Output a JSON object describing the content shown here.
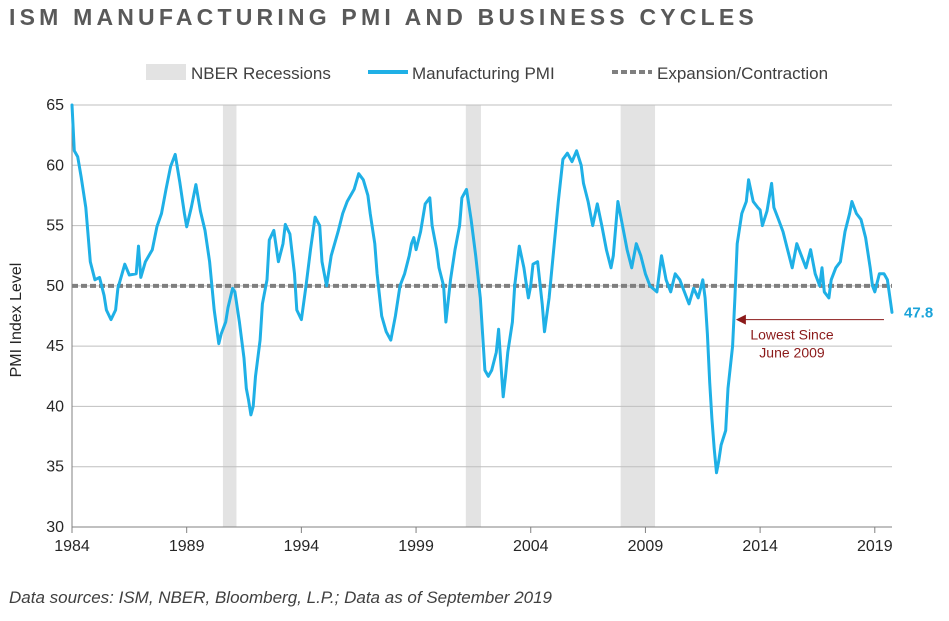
{
  "title": "ISM MANUFACTURING PMI AND BUSINESS CYCLES",
  "source_note": "Data sources: ISM, NBER, Bloomberg, L.P.; Data as of September 2019",
  "colors": {
    "pmi": "#1fb0e6",
    "recession": "#e3e3e3",
    "threshold": "#7f7f7f",
    "annotation": "#8b1a1a",
    "end_label": "#1aa3d9"
  },
  "chart_data": {
    "type": "line",
    "title": "ISM MANUFACTURING PMI AND BUSINESS CYCLES",
    "xlabel": "",
    "ylabel": "PMI Index Level",
    "xlim": [
      1984.0,
      2019.75
    ],
    "ylim": [
      30,
      65
    ],
    "x_ticks": [
      "1984",
      "1989",
      "1994",
      "1999",
      "2004",
      "2009",
      "2014",
      "2019"
    ],
    "y_ticks": [
      "30",
      "35",
      "40",
      "45",
      "50",
      "55",
      "60",
      "65"
    ],
    "grid": "horizontal",
    "legend": {
      "position": "top",
      "entries": [
        "NBER Recessions",
        "Manufacturing PMI",
        "Expansion/Contraction"
      ]
    },
    "threshold": {
      "name": "Expansion/Contraction",
      "value": 50
    },
    "recessions": [
      {
        "start": 1990.58,
        "end": 1991.17
      },
      {
        "start": 2001.17,
        "end": 2001.83
      },
      {
        "start": 2007.92,
        "end": 2009.42
      }
    ],
    "series": [
      {
        "name": "Manufacturing PMI",
        "points": [
          [
            1984.0,
            65.0
          ],
          [
            1984.1,
            61.2
          ],
          [
            1984.25,
            60.7
          ],
          [
            1984.4,
            59.0
          ],
          [
            1984.6,
            56.5
          ],
          [
            1984.8,
            52.0
          ],
          [
            1985.0,
            50.5
          ],
          [
            1985.2,
            50.7
          ],
          [
            1985.4,
            49.2
          ],
          [
            1985.5,
            48.0
          ],
          [
            1985.7,
            47.2
          ],
          [
            1985.9,
            48.0
          ],
          [
            1986.0,
            49.8
          ],
          [
            1986.3,
            51.8
          ],
          [
            1986.5,
            50.9
          ],
          [
            1986.8,
            51.0
          ],
          [
            1986.9,
            53.3
          ],
          [
            1987.0,
            50.7
          ],
          [
            1987.2,
            52.0
          ],
          [
            1987.5,
            53.0
          ],
          [
            1987.7,
            54.9
          ],
          [
            1987.9,
            56.0
          ],
          [
            1988.1,
            58.0
          ],
          [
            1988.3,
            59.9
          ],
          [
            1988.5,
            60.9
          ],
          [
            1988.7,
            58.6
          ],
          [
            1988.9,
            56.0
          ],
          [
            1989.0,
            54.9
          ],
          [
            1989.2,
            56.5
          ],
          [
            1989.4,
            58.4
          ],
          [
            1989.6,
            56.2
          ],
          [
            1989.8,
            54.6
          ],
          [
            1990.0,
            52.0
          ],
          [
            1990.2,
            48.0
          ],
          [
            1990.4,
            45.2
          ],
          [
            1990.5,
            46.0
          ],
          [
            1990.7,
            47.0
          ],
          [
            1990.8,
            48.2
          ],
          [
            1991.0,
            49.8
          ],
          [
            1991.1,
            49.5
          ],
          [
            1991.3,
            47.0
          ],
          [
            1991.5,
            44.0
          ],
          [
            1991.6,
            41.5
          ],
          [
            1991.7,
            40.5
          ],
          [
            1991.8,
            39.3
          ],
          [
            1991.9,
            40.0
          ],
          [
            1992.0,
            42.5
          ],
          [
            1992.2,
            45.5
          ],
          [
            1992.3,
            48.5
          ],
          [
            1992.5,
            50.5
          ],
          [
            1992.6,
            53.8
          ],
          [
            1992.8,
            54.6
          ],
          [
            1993.0,
            52.0
          ],
          [
            1993.2,
            53.5
          ],
          [
            1993.3,
            55.1
          ],
          [
            1993.5,
            54.3
          ],
          [
            1993.7,
            51.0
          ],
          [
            1993.8,
            48.0
          ],
          [
            1994.0,
            47.2
          ],
          [
            1994.2,
            50.0
          ],
          [
            1994.4,
            53.0
          ],
          [
            1994.6,
            55.7
          ],
          [
            1994.8,
            55.0
          ],
          [
            1994.9,
            52.0
          ],
          [
            1995.1,
            50.0
          ],
          [
            1995.3,
            52.5
          ],
          [
            1995.6,
            54.5
          ],
          [
            1995.8,
            56.0
          ],
          [
            1996.0,
            57.0
          ],
          [
            1996.3,
            58.0
          ],
          [
            1996.5,
            59.3
          ],
          [
            1996.7,
            58.8
          ],
          [
            1996.9,
            57.5
          ],
          [
            1997.0,
            56.0
          ],
          [
            1997.2,
            53.5
          ],
          [
            1997.3,
            51.0
          ],
          [
            1997.5,
            47.5
          ],
          [
            1997.7,
            46.2
          ],
          [
            1997.9,
            45.5
          ],
          [
            1998.1,
            47.5
          ],
          [
            1998.3,
            50.0
          ],
          [
            1998.5,
            51.0
          ],
          [
            1998.7,
            52.5
          ],
          [
            1998.8,
            53.5
          ],
          [
            1998.9,
            54.0
          ],
          [
            1999.0,
            53.0
          ],
          [
            1999.2,
            54.5
          ],
          [
            1999.4,
            56.8
          ],
          [
            1999.6,
            57.3
          ],
          [
            1999.7,
            55.0
          ],
          [
            1999.9,
            53.0
          ],
          [
            2000.0,
            51.5
          ],
          [
            2000.2,
            50.0
          ],
          [
            2000.3,
            47.0
          ],
          [
            2000.5,
            50.5
          ],
          [
            2000.7,
            53.0
          ],
          [
            2000.9,
            55.0
          ],
          [
            2001.0,
            57.3
          ],
          [
            2001.2,
            58.0
          ],
          [
            2001.4,
            55.5
          ],
          [
            2001.6,
            52.5
          ],
          [
            2001.8,
            49.0
          ],
          [
            2001.9,
            46.0
          ],
          [
            2002.0,
            43.0
          ],
          [
            2002.15,
            42.5
          ],
          [
            2002.3,
            43.0
          ],
          [
            2002.5,
            44.5
          ],
          [
            2002.6,
            46.4
          ],
          [
            2002.7,
            43.5
          ],
          [
            2002.8,
            40.8
          ],
          [
            2002.9,
            42.5
          ],
          [
            2003.0,
            44.5
          ],
          [
            2003.2,
            47.0
          ],
          [
            2003.3,
            50.0
          ],
          [
            2003.5,
            53.3
          ],
          [
            2003.7,
            51.5
          ],
          [
            2003.8,
            50.2
          ],
          [
            2003.9,
            49.0
          ],
          [
            2004.0,
            50.0
          ],
          [
            2004.1,
            51.8
          ],
          [
            2004.3,
            52.0
          ],
          [
            2004.5,
            48.5
          ],
          [
            2004.6,
            46.2
          ],
          [
            2004.8,
            49.0
          ],
          [
            2005.0,
            53.0
          ],
          [
            2005.2,
            57.0
          ],
          [
            2005.4,
            60.5
          ],
          [
            2005.6,
            61.0
          ],
          [
            2005.8,
            60.3
          ],
          [
            2006.0,
            61.2
          ],
          [
            2006.2,
            60.0
          ],
          [
            2006.3,
            58.5
          ],
          [
            2006.5,
            57.0
          ],
          [
            2006.7,
            55.0
          ],
          [
            2006.9,
            56.8
          ],
          [
            2007.1,
            55.0
          ],
          [
            2007.3,
            53.0
          ],
          [
            2007.5,
            51.5
          ],
          [
            2007.6,
            52.5
          ],
          [
            2007.8,
            57.0
          ],
          [
            2008.0,
            55.0
          ],
          [
            2008.2,
            53.0
          ],
          [
            2008.4,
            51.5
          ],
          [
            2008.6,
            53.5
          ],
          [
            2008.8,
            52.5
          ],
          [
            2009.0,
            51.0
          ],
          [
            2009.2,
            50.0
          ],
          [
            2009.5,
            49.5
          ],
          [
            2009.7,
            52.5
          ],
          [
            2009.9,
            50.5
          ],
          [
            2010.1,
            49.5
          ],
          [
            2010.3,
            51.0
          ],
          [
            2010.5,
            50.5
          ],
          [
            2010.7,
            49.5
          ],
          [
            2010.9,
            48.5
          ],
          [
            2011.1,
            49.8
          ],
          [
            2011.3,
            49.0
          ],
          [
            2011.5,
            50.5
          ],
          [
            2011.6,
            49.0
          ],
          [
            2011.7,
            46.0
          ],
          [
            2011.8,
            42.0
          ],
          [
            2011.9,
            39.0
          ],
          [
            2012.0,
            36.5
          ],
          [
            2012.1,
            34.5
          ],
          [
            2012.2,
            35.5
          ],
          [
            2012.3,
            36.8
          ],
          [
            2012.5,
            38.0
          ],
          [
            2012.6,
            41.5
          ],
          [
            2012.8,
            45.0
          ],
          [
            2012.9,
            49.0
          ],
          [
            2013.0,
            53.5
          ],
          [
            2013.2,
            56.0
          ],
          [
            2013.4,
            57.0
          ],
          [
            2013.5,
            58.8
          ],
          [
            2013.7,
            57.0
          ],
          [
            2013.9,
            56.5
          ],
          [
            2014.0,
            56.3
          ],
          [
            2014.1,
            55.0
          ],
          [
            2014.3,
            56.2
          ],
          [
            2014.5,
            58.5
          ],
          [
            2014.6,
            56.5
          ],
          [
            2014.8,
            55.5
          ],
          [
            2015.0,
            54.5
          ],
          [
            2015.2,
            53.0
          ],
          [
            2015.4,
            51.5
          ],
          [
            2015.6,
            53.5
          ],
          [
            2015.8,
            52.5
          ],
          [
            2016.0,
            51.5
          ],
          [
            2016.2,
            53.0
          ],
          [
            2016.4,
            51.0
          ],
          [
            2016.6,
            50.0
          ],
          [
            2016.7,
            51.5
          ],
          [
            2016.8,
            49.5
          ],
          [
            2017.0,
            49.0
          ],
          [
            2017.1,
            50.5
          ],
          [
            2017.3,
            51.5
          ],
          [
            2017.5,
            52.0
          ],
          [
            2017.7,
            54.5
          ],
          [
            2017.9,
            56.0
          ],
          [
            2018.0,
            57.0
          ],
          [
            2018.2,
            56.0
          ],
          [
            2018.4,
            55.5
          ],
          [
            2018.6,
            54.0
          ],
          [
            2018.8,
            51.5
          ],
          [
            2018.9,
            50.0
          ],
          [
            2019.0,
            49.5
          ],
          [
            2019.2,
            51.0
          ],
          [
            2019.4,
            51.0
          ],
          [
            2019.55,
            50.5
          ],
          [
            2019.75,
            47.8
          ]
        ]
      }
    ],
    "annotations": [
      {
        "text_lines": [
          "Lowest Since",
          "June 2009"
        ],
        "arrow_from_x": 2019.4,
        "arrow_to_x": 2012.9,
        "y": 47.2
      }
    ],
    "end_label": "47.8"
  }
}
